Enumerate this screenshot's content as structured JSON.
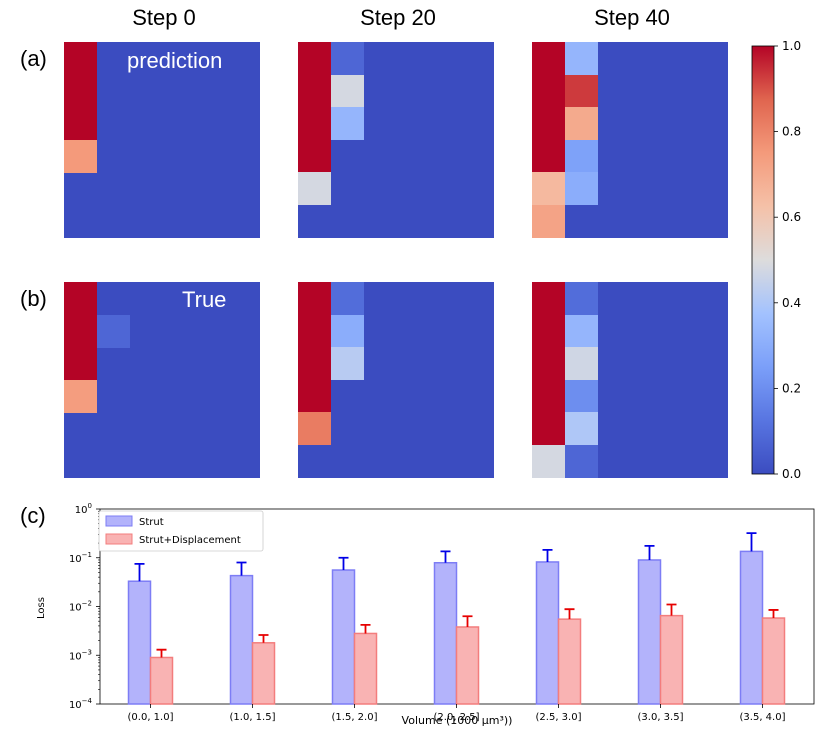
{
  "steps": [
    "Step 0",
    "Step 20",
    "Step 40"
  ],
  "row_labels": {
    "a": "(a)",
    "b": "(b)",
    "c": "(c)"
  },
  "overlay_labels": {
    "prediction": "prediction",
    "true": "True"
  },
  "colorbar": {
    "min": 0.0,
    "max": 1.0,
    "ticks": [
      "0.0",
      "0.2",
      "0.4",
      "0.6",
      "0.8",
      "1.0"
    ]
  },
  "heatmaps": {
    "grid_size": 6,
    "background_value": 0.0,
    "prediction": [
      {
        "step": "Step 0",
        "cells": [
          [
            0,
            0,
            1.0
          ],
          [
            1,
            0,
            1.0
          ],
          [
            2,
            0,
            1.0
          ],
          [
            3,
            0,
            0.75
          ]
        ]
      },
      {
        "step": "Step 20",
        "cells": [
          [
            0,
            0,
            1.0
          ],
          [
            1,
            0,
            1.0
          ],
          [
            2,
            0,
            1.0
          ],
          [
            3,
            0,
            1.0
          ],
          [
            4,
            0,
            0.48
          ],
          [
            0,
            1,
            0.08
          ],
          [
            1,
            1,
            0.48
          ],
          [
            2,
            1,
            0.33
          ]
        ]
      },
      {
        "step": "Step 40",
        "cells": [
          [
            0,
            0,
            1.0
          ],
          [
            1,
            0,
            1.0
          ],
          [
            2,
            0,
            1.0
          ],
          [
            3,
            0,
            1.0
          ],
          [
            4,
            0,
            0.65
          ],
          [
            5,
            0,
            0.72
          ],
          [
            0,
            1,
            0.33
          ],
          [
            1,
            1,
            0.93
          ],
          [
            2,
            1,
            0.7
          ],
          [
            3,
            1,
            0.26
          ],
          [
            4,
            1,
            0.3
          ]
        ]
      }
    ],
    "true": [
      {
        "step": "Step 0",
        "cells": [
          [
            0,
            0,
            1.0
          ],
          [
            1,
            0,
            1.0
          ],
          [
            2,
            0,
            1.0
          ],
          [
            3,
            0,
            0.74
          ],
          [
            1,
            1,
            0.08
          ]
        ]
      },
      {
        "step": "Step 20",
        "cells": [
          [
            0,
            0,
            1.0
          ],
          [
            1,
            0,
            1.0
          ],
          [
            2,
            0,
            1.0
          ],
          [
            3,
            0,
            1.0
          ],
          [
            4,
            0,
            0.82
          ],
          [
            0,
            1,
            0.1
          ],
          [
            1,
            1,
            0.3
          ],
          [
            2,
            1,
            0.42
          ]
        ]
      },
      {
        "step": "Step 40",
        "cells": [
          [
            0,
            0,
            1.0
          ],
          [
            1,
            0,
            1.0
          ],
          [
            2,
            0,
            1.0
          ],
          [
            3,
            0,
            1.0
          ],
          [
            4,
            0,
            1.0
          ],
          [
            5,
            0,
            0.48
          ],
          [
            0,
            1,
            0.1
          ],
          [
            1,
            1,
            0.33
          ],
          [
            2,
            1,
            0.47
          ],
          [
            3,
            1,
            0.2
          ],
          [
            4,
            1,
            0.4
          ],
          [
            5,
            1,
            0.08
          ]
        ]
      }
    ]
  },
  "chart_data": {
    "type": "bar",
    "title": "",
    "xlabel": "Volume (1000 μm³))",
    "ylabel": "Loss",
    "yscale": "log",
    "ylim": [
      0.0001,
      1
    ],
    "ytick_values": [
      0.0001,
      0.001,
      0.01,
      0.1,
      1
    ],
    "ytick_labels": [
      {
        "base": "10",
        "exp": "−4"
      },
      {
        "base": "10",
        "exp": "−3"
      },
      {
        "base": "10",
        "exp": "−2"
      },
      {
        "base": "10",
        "exp": "−1"
      },
      {
        "base": "10",
        "exp": "0"
      }
    ],
    "categories": [
      "(0.0, 1.0]",
      "(1.0, 1.5]",
      "(1.5, 2.0]",
      "(2.0, 2.5]",
      "(2.5, 3.0]",
      "(3.0, 3.5]",
      "(3.5, 4.0]"
    ],
    "legend_position": "top-left",
    "series": [
      {
        "name": "Strut",
        "fill": "#b3b3fb",
        "edge": "#7d7df5",
        "err_color": "#0000e6",
        "values": [
          0.033,
          0.043,
          0.056,
          0.079,
          0.082,
          0.09,
          0.135
        ],
        "err_upper": [
          0.075,
          0.08,
          0.1,
          0.135,
          0.145,
          0.175,
          0.32
        ]
      },
      {
        "name": "Strut+Displacement",
        "fill": "#f9b3b3",
        "edge": "#f37d7d",
        "err_color": "#e60000",
        "values": [
          0.0009,
          0.0018,
          0.0028,
          0.0038,
          0.0055,
          0.0065,
          0.0058
        ],
        "err_upper": [
          0.0013,
          0.0026,
          0.0042,
          0.0063,
          0.0088,
          0.011,
          0.0085
        ]
      }
    ]
  }
}
